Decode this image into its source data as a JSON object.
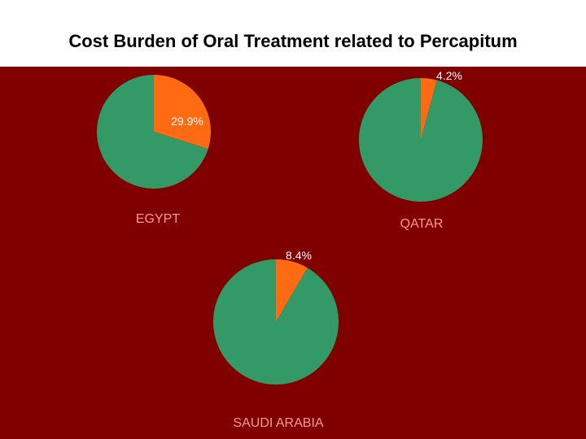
{
  "title": "Cost Burden of Oral Treatment related to Percapitum",
  "colors": {
    "background": "#800000",
    "burden": "#ff6a13",
    "remainder": "#339966",
    "label_text": "#ffffff",
    "country_text": "#ff9999"
  },
  "chart_data": [
    {
      "type": "pie",
      "country": "EGYPT",
      "slices": [
        {
          "label": "29.9%",
          "value": 29.9,
          "color": "#ff6a13"
        },
        {
          "value": 70.1,
          "color": "#339966"
        }
      ]
    },
    {
      "type": "pie",
      "country": "QATAR",
      "slices": [
        {
          "label": "4.2%",
          "value": 4.2,
          "color": "#ff6a13"
        },
        {
          "value": 95.8,
          "color": "#339966"
        }
      ]
    },
    {
      "type": "pie",
      "country": "SAUDI ARABIA",
      "slices": [
        {
          "label": "8.4%",
          "value": 8.4,
          "color": "#ff6a13"
        },
        {
          "value": 91.6,
          "color": "#339966"
        }
      ]
    }
  ]
}
